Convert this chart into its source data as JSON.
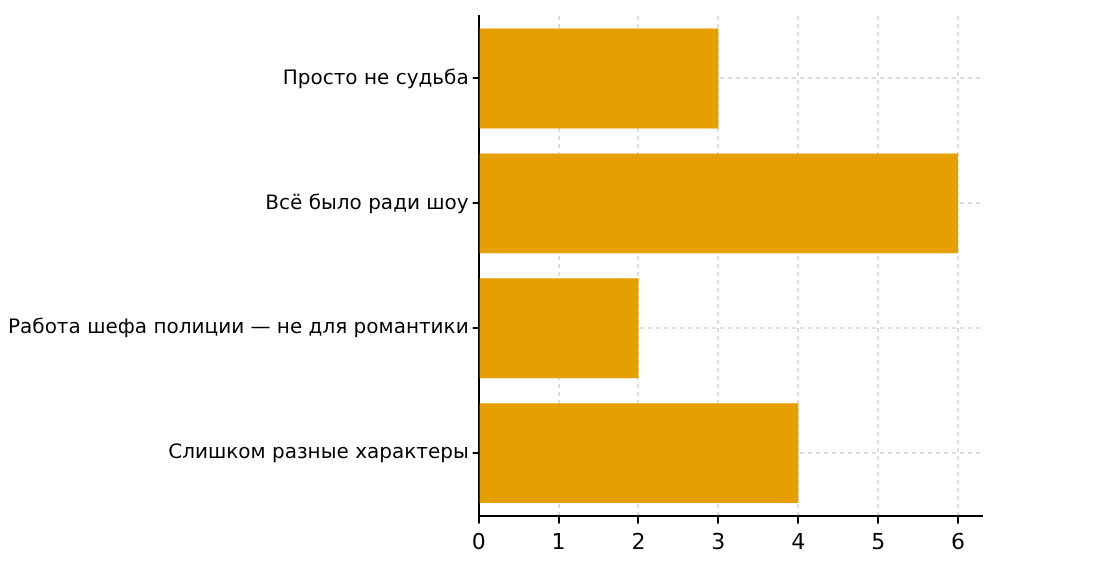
{
  "chart_data": {
    "type": "bar",
    "orientation": "horizontal",
    "categories": [
      "Просто не судьба",
      "Всё было ради шоу",
      "Работа шефа полиции — не для романтики",
      "Слишком разные характеры"
    ],
    "values": [
      3,
      6,
      2,
      4
    ],
    "color": "#e69f00",
    "xlim": [
      0,
      6.3
    ],
    "xticks": [
      0,
      1,
      2,
      3,
      4,
      5,
      6
    ],
    "grid": true,
    "legend": false
  }
}
